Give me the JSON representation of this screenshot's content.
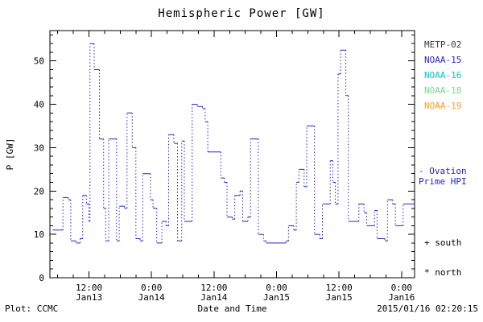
{
  "figure": {
    "footer_left": "Plot: CCMC",
    "footer_right": "2015/01/16 02:20:15"
  },
  "legend": {
    "satellites": [
      {
        "label": "METP-02",
        "color": "#3a3a3a"
      },
      {
        "label": "NOAA-15",
        "color": "#2323cd"
      },
      {
        "label": "NOAA-16",
        "color": "#00c8c8"
      },
      {
        "label": "NOAA-18",
        "color": "#6fd98f"
      },
      {
        "label": "NOAA-19",
        "color": "#ff9a2e"
      }
    ],
    "ovation_line1": "- Ovation",
    "ovation_line2": "Prime HPI",
    "ovation_color": "#2323cd",
    "south_marker": "+ south",
    "north_marker": "* north"
  },
  "chart_data": {
    "type": "line",
    "style": "step-post, solid horizontal steps with dotted vertical connectors",
    "title": "Hemispheric Power [GW]",
    "xlabel": "Date and Time",
    "ylabel": "P [GW]",
    "ylim": [
      0,
      57
    ],
    "xlim_hours": [
      4.5,
      74.5
    ],
    "x_epoch": "hours since 2015-01-13 00:00",
    "x_major_ticks": [
      12,
      24,
      36,
      48,
      60,
      72
    ],
    "x_tick_labels": [
      [
        "12:00",
        "Jan13"
      ],
      [
        "0:00",
        "Jan14"
      ],
      [
        "12:00",
        "Jan14"
      ],
      [
        "0:00",
        "Jan15"
      ],
      [
        "12:00",
        "Jan15"
      ],
      [
        "0:00",
        "Jan16"
      ]
    ],
    "y_ticks": [
      0,
      10,
      20,
      30,
      40,
      50
    ],
    "grid": false,
    "legend_position": "right-outside",
    "series": {
      "name": "Ovation Prime HPI",
      "color": "#2323cd",
      "t": [
        5,
        6.5,
        7,
        8,
        8.5,
        9.5,
        10.3,
        10.8,
        11.5,
        12,
        12.2,
        13,
        14,
        14.8,
        15.2,
        15.8,
        16.8,
        17.3,
        17.8,
        18.8,
        19.3,
        20.3,
        21,
        21.8,
        22.3,
        23.3,
        23.8,
        24.3,
        25,
        26,
        26.8,
        27.3,
        28.3,
        29,
        29.8,
        30.3,
        31.3,
        31.8,
        32.8,
        33.8,
        34.3,
        34.8,
        36.3,
        37.3,
        38,
        38.5,
        39.5,
        40,
        41,
        41.5,
        42.5,
        43,
        44,
        44.5,
        45.5,
        46,
        47.5,
        49,
        49.8,
        50.3,
        51.3,
        51.8,
        52.3,
        53.3,
        53.8,
        54.8,
        55.3,
        56.3,
        56.8,
        57.8,
        58.3,
        58.8,
        59.3,
        59.8,
        60.3,
        61.3,
        61.8,
        63.3,
        63.8,
        64.8,
        65.3,
        66.3,
        66.8,
        67.3,
        68.3,
        68.8,
        69.3,
        70.3,
        70.8,
        71.8,
        72.3,
        73.8
      ],
      "p": [
        11,
        11,
        18.5,
        18,
        8.5,
        8,
        9,
        19,
        17,
        13,
        54,
        48,
        32,
        16,
        8.5,
        32,
        32,
        8.5,
        16.5,
        16,
        38,
        30,
        9,
        8.5,
        24,
        24,
        18,
        16,
        8,
        13,
        12,
        33,
        31,
        8.5,
        31.5,
        13,
        13,
        40,
        39.5,
        39,
        36,
        29,
        29,
        23,
        22,
        14,
        13.5,
        19,
        20,
        13,
        14,
        32,
        32,
        10,
        8.5,
        8,
        8,
        8,
        8.5,
        12,
        11,
        22,
        25,
        21,
        35,
        35,
        10,
        9,
        17,
        17,
        27,
        22,
        17,
        47,
        52.5,
        42,
        13,
        13,
        17,
        15,
        12,
        12,
        15.5,
        9,
        9,
        8.5,
        18,
        17,
        12,
        12,
        17,
        17
      ]
    }
  }
}
